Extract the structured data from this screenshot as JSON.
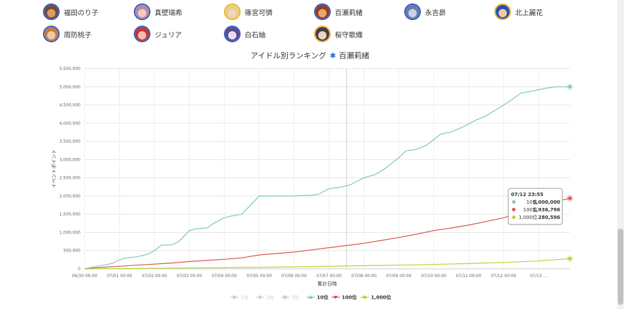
{
  "idols": [
    {
      "name": "福田のり子",
      "ring": "#2f5fc4",
      "face": "#d99a6c",
      "hair": "#7a4a2a"
    },
    {
      "name": "真壁瑞希",
      "ring": "#2f5fc4",
      "face": "#f3c9c9",
      "hair": "#b98a9a"
    },
    {
      "name": "篠宮可憐",
      "ring": "#e8b930",
      "face": "#f5d6b8",
      "hair": "#e6cf8a"
    },
    {
      "name": "百瀬莉緒",
      "ring": "#2f5fc4",
      "face": "#e8a86b",
      "hair": "#9b3a1e"
    },
    {
      "name": "永吉昴",
      "ring": "#2f5fc4",
      "face": "#c9d3e6",
      "hair": "#6b7aa8"
    },
    {
      "name": "北上麗花",
      "ring": "#e8b930",
      "face": "#f0c9a6",
      "hair": "#2a4fae"
    },
    {
      "name": "周防桃子",
      "ring": "#2f5fc4",
      "face": "#f2c7a2",
      "hair": "#c47a3e"
    },
    {
      "name": "ジュリア",
      "ring": "#2f5fc4",
      "face": "#f2c0b0",
      "hair": "#c8342e"
    },
    {
      "name": "白石紬",
      "ring": "#2f5fc4",
      "face": "#e7dff0",
      "hair": "#5b4b8a"
    },
    {
      "name": "桜守歌織",
      "ring": "#e8b930",
      "face": "#e8d6c6",
      "hair": "#4a3a4a"
    }
  ],
  "chart_data": {
    "type": "line",
    "title": "アイドル別ランキング",
    "title_highlight": "百瀬莉緒",
    "title_icon": "asterisk-icon",
    "xlabel": "集計日時",
    "ylabel": "イベントポイント",
    "ylim": [
      0,
      5500000
    ],
    "yticks": [
      "0",
      "500,000",
      "1,000,000",
      "1,500,000",
      "2,000,000",
      "2,500,000",
      "3,000,000",
      "3,500,000",
      "4,000,000",
      "4,500,000",
      "5,000,000",
      "5,500,000"
    ],
    "xlim": [
      0,
      6.95
    ],
    "xticks": [
      "06/30 00:00",
      "07/01 00:00",
      "07/02 00:00",
      "07/03 00:00",
      "07/04 00:00",
      "07/05 00:00",
      "07/06 00:00",
      "07/07 00:00",
      "07/08 00:00",
      "07/09 00:00",
      "07/10 00:00",
      "07/11 00:00",
      "07/12 00:00",
      "07/13 ..."
    ],
    "crosshair_day": 3.75,
    "legend_position": "bottom-center",
    "grid": true,
    "series": [
      {
        "name": "1位",
        "color": "#cccccc",
        "hidden": true,
        "marker": "circle",
        "points": []
      },
      {
        "name": "2位",
        "color": "#cccccc",
        "hidden": true,
        "marker": "diamond",
        "points": []
      },
      {
        "name": "3位",
        "color": "#cccccc",
        "hidden": true,
        "marker": "square",
        "points": []
      },
      {
        "name": "10位",
        "color": "#7cc7b6",
        "hidden": false,
        "marker": "triangle",
        "points": [
          [
            0.0,
            0
          ],
          [
            0.15,
            60000
          ],
          [
            0.3,
            110000
          ],
          [
            0.4,
            150000
          ],
          [
            0.5,
            250000
          ],
          [
            0.6,
            300000
          ],
          [
            0.75,
            330000
          ],
          [
            0.9,
            400000
          ],
          [
            1.0,
            500000
          ],
          [
            1.1,
            650000
          ],
          [
            1.25,
            660000
          ],
          [
            1.35,
            750000
          ],
          [
            1.5,
            1050000
          ],
          [
            1.6,
            1100000
          ],
          [
            1.75,
            1120000
          ],
          [
            1.85,
            1250000
          ],
          [
            2.0,
            1400000
          ],
          [
            2.1,
            1450000
          ],
          [
            2.25,
            1500000
          ],
          [
            2.35,
            1700000
          ],
          [
            2.5,
            2000000
          ],
          [
            2.75,
            2000000
          ],
          [
            3.0,
            2000000
          ],
          [
            3.25,
            2020000
          ],
          [
            3.35,
            2050000
          ],
          [
            3.5,
            2200000
          ],
          [
            3.65,
            2240000
          ],
          [
            3.8,
            2300000
          ],
          [
            4.0,
            2500000
          ],
          [
            4.15,
            2580000
          ],
          [
            4.3,
            2750000
          ],
          [
            4.5,
            3050000
          ],
          [
            4.6,
            3240000
          ],
          [
            4.75,
            3280000
          ],
          [
            4.9,
            3400000
          ],
          [
            5.1,
            3700000
          ],
          [
            5.25,
            3760000
          ],
          [
            5.4,
            3880000
          ],
          [
            5.6,
            4080000
          ],
          [
            5.75,
            4200000
          ],
          [
            5.9,
            4380000
          ],
          [
            6.1,
            4620000
          ],
          [
            6.25,
            4830000
          ],
          [
            6.4,
            4880000
          ],
          [
            6.6,
            4960000
          ],
          [
            6.75,
            5000000
          ],
          [
            6.95,
            5000000
          ]
        ]
      },
      {
        "name": "100位",
        "color": "#d9534f",
        "hidden": false,
        "marker": "triangle-down",
        "points": [
          [
            0.0,
            0
          ],
          [
            0.25,
            40000
          ],
          [
            0.5,
            70000
          ],
          [
            0.75,
            100000
          ],
          [
            1.0,
            130000
          ],
          [
            1.25,
            160000
          ],
          [
            1.5,
            200000
          ],
          [
            1.75,
            230000
          ],
          [
            2.0,
            260000
          ],
          [
            2.25,
            300000
          ],
          [
            2.5,
            380000
          ],
          [
            2.75,
            420000
          ],
          [
            3.0,
            460000
          ],
          [
            3.25,
            520000
          ],
          [
            3.5,
            580000
          ],
          [
            3.75,
            640000
          ],
          [
            4.0,
            700000
          ],
          [
            4.25,
            780000
          ],
          [
            4.5,
            860000
          ],
          [
            4.75,
            950000
          ],
          [
            5.0,
            1050000
          ],
          [
            5.25,
            1120000
          ],
          [
            5.5,
            1200000
          ],
          [
            5.75,
            1300000
          ],
          [
            6.0,
            1400000
          ],
          [
            6.25,
            1550000
          ],
          [
            6.5,
            1700000
          ],
          [
            6.75,
            1850000
          ],
          [
            6.95,
            1936796
          ]
        ]
      },
      {
        "name": "1,000位",
        "color": "#b5d334",
        "hidden": false,
        "marker": "circle",
        "points": [
          [
            0.0,
            0
          ],
          [
            0.5,
            8000
          ],
          [
            1.0,
            15000
          ],
          [
            1.5,
            22000
          ],
          [
            2.0,
            30000
          ],
          [
            2.5,
            40000
          ],
          [
            3.0,
            55000
          ],
          [
            3.5,
            70000
          ],
          [
            4.0,
            85000
          ],
          [
            4.5,
            100000
          ],
          [
            5.0,
            120000
          ],
          [
            5.5,
            145000
          ],
          [
            6.0,
            175000
          ],
          [
            6.5,
            215000
          ],
          [
            6.95,
            280596
          ]
        ]
      }
    ],
    "tooltip": {
      "time": "07/12 23:55",
      "rows": [
        {
          "label": "10位",
          "value": "5,000,000",
          "color": "#7cc7b6"
        },
        {
          "label": "100位",
          "value": "1,936,796",
          "color": "#d9534f"
        },
        {
          "label": "1,000位",
          "value": "280,596",
          "color": "#b5d334"
        }
      ]
    }
  }
}
